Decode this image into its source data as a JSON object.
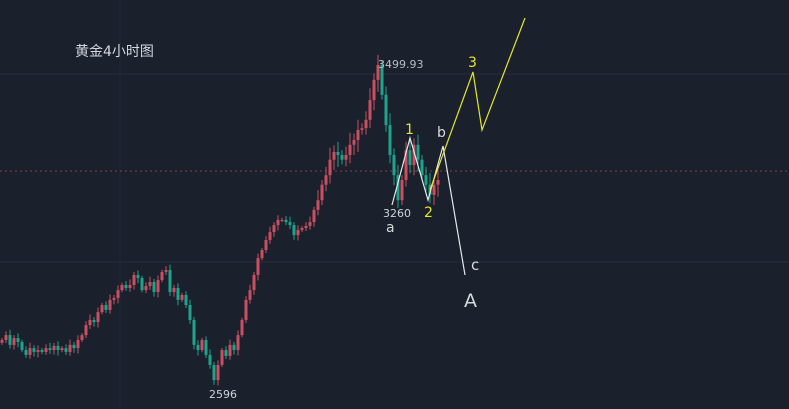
{
  "chart_data": {
    "type": "candlestick",
    "title": "黄金4小时图",
    "closes": [
      2762,
      2780,
      2744,
      2769,
      2755,
      2725,
      2707,
      2732,
      2718,
      2725,
      2718,
      2732,
      2725,
      2740,
      2725,
      2732,
      2718,
      2744,
      2732,
      2762,
      2780,
      2817,
      2836,
      2828,
      2865,
      2891,
      2873,
      2910,
      2917,
      2946,
      2965,
      2954,
      2965,
      3002,
      2991,
      2946,
      2961,
      2976,
      2939,
      2983,
      3013,
      3020,
      2939,
      2954,
      2910,
      2928,
      2891,
      2836,
      2744,
      2725,
      2762,
      2707,
      2670,
      2614,
      2670,
      2725,
      2703,
      2744,
      2725,
      2780,
      2836,
      2910,
      2946,
      3002,
      3064,
      3094,
      3131,
      3160,
      3186,
      3205,
      3205,
      3197,
      3186,
      3149,
      3168,
      3175,
      3183,
      3197,
      3242,
      3268,
      3294,
      3310,
      3336,
      3349,
      3344,
      3336,
      3344,
      3361,
      3369,
      3386,
      3389,
      3403,
      3436,
      3470,
      3495,
      3445,
      3394,
      3344,
      3310,
      3268,
      3302,
      3352,
      3327,
      3361,
      3336,
      3310,
      3294,
      3277,
      3294,
      3302
    ],
    "up_color": "#c94f61",
    "down_color": "#1fa38d",
    "annotations": {
      "high_label": "3499.93",
      "low_label": "2596",
      "mid_low_label": "3260"
    },
    "wave_labels": {
      "w1": "1",
      "w2": "2",
      "w3": "3",
      "a": "a",
      "b": "b",
      "c": "c",
      "A": "A"
    },
    "wave_colors": {
      "impulse": "#e6e62a",
      "correction": "#e8e8e8"
    },
    "current_price_line_color": "#8a3d4a",
    "grid": true
  }
}
